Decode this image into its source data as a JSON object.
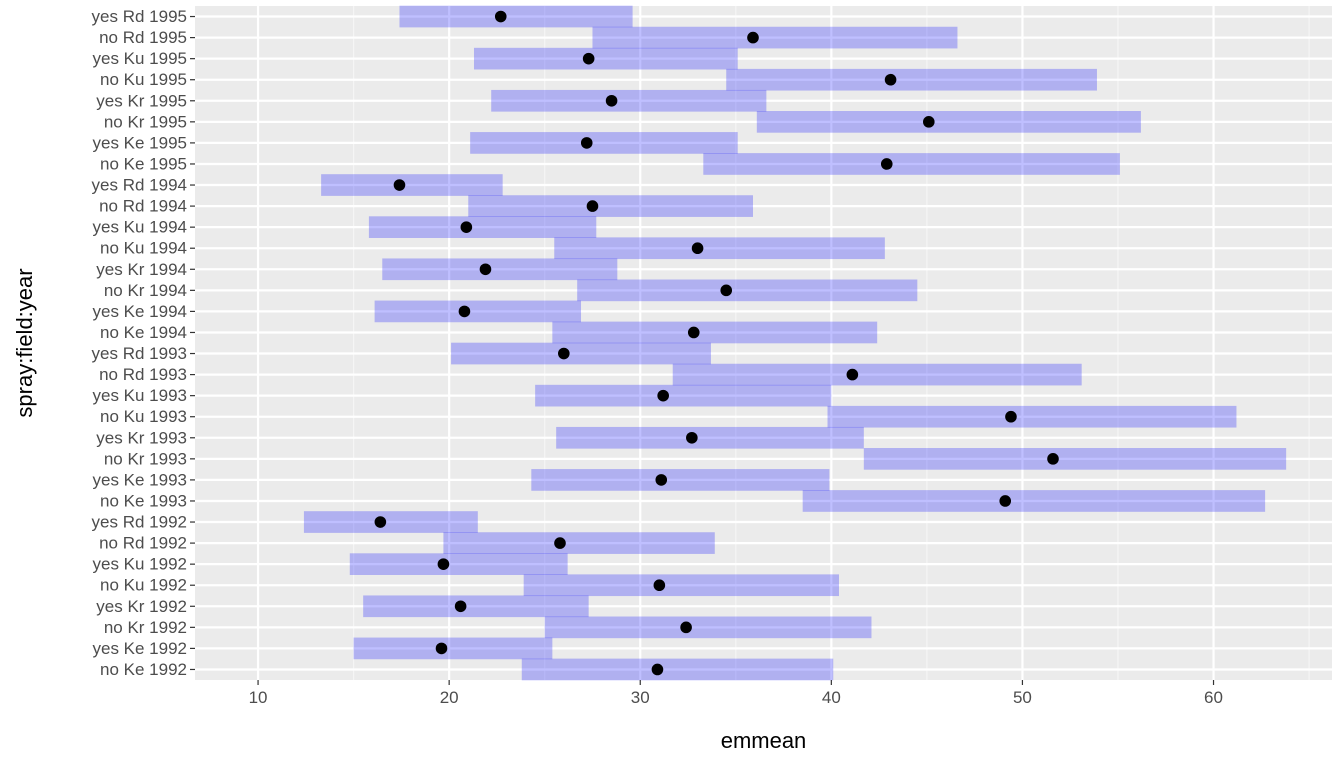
{
  "chart_data": {
    "type": "interval",
    "xlabel": "emmean",
    "ylabel": "spray:field:year",
    "xlim": [
      6.7,
      66.2
    ],
    "x_ticks": [
      10,
      20,
      30,
      40,
      50,
      60
    ],
    "grid": true,
    "legend": "none",
    "colors": {
      "panel_bg": "#ebebeb",
      "grid_major": "#ffffff",
      "grid_minor": "#f5f5f5",
      "interval_fill": "#0000ff",
      "point": "#000000",
      "tick_text": "#4d4d4d"
    },
    "categories": [
      "no Ke 1992",
      "yes Ke 1992",
      "no Kr 1992",
      "yes Kr 1992",
      "no Ku 1992",
      "yes Ku 1992",
      "no Rd 1992",
      "yes Rd 1992",
      "no Ke 1993",
      "yes Ke 1993",
      "no Kr 1993",
      "yes Kr 1993",
      "no Ku 1993",
      "yes Ku 1993",
      "no Rd 1993",
      "yes Rd 1993",
      "no Ke 1994",
      "yes Ke 1994",
      "no Kr 1994",
      "yes Kr 1994",
      "no Ku 1994",
      "yes Ku 1994",
      "no Rd 1994",
      "yes Rd 1994",
      "no Ke 1995",
      "yes Ke 1995",
      "no Kr 1995",
      "yes Kr 1995",
      "no Ku 1995",
      "yes Ku 1995",
      "no Rd 1995",
      "yes Rd 1995"
    ],
    "emmean": [
      30.9,
      19.6,
      32.4,
      20.6,
      31.0,
      19.7,
      25.8,
      16.4,
      49.1,
      31.1,
      51.6,
      32.7,
      49.4,
      31.2,
      41.1,
      26.0,
      32.8,
      20.8,
      34.5,
      21.9,
      33.0,
      20.9,
      27.5,
      17.4,
      42.9,
      27.2,
      45.1,
      28.5,
      43.1,
      27.3,
      35.9,
      22.7
    ],
    "lower": [
      23.8,
      15.0,
      25.0,
      15.5,
      23.9,
      14.8,
      19.7,
      12.4,
      38.5,
      24.3,
      41.7,
      25.6,
      39.8,
      24.5,
      31.7,
      20.1,
      25.4,
      16.1,
      26.7,
      16.5,
      25.5,
      15.8,
      21.0,
      13.3,
      33.3,
      21.1,
      36.1,
      22.2,
      34.5,
      21.3,
      27.5,
      17.4
    ],
    "upper": [
      40.1,
      25.4,
      42.1,
      27.3,
      40.4,
      26.2,
      33.9,
      21.5,
      62.7,
      39.9,
      63.8,
      41.7,
      61.2,
      40.0,
      53.1,
      33.7,
      42.4,
      26.9,
      44.5,
      28.8,
      42.8,
      27.7,
      35.9,
      22.8,
      55.1,
      35.1,
      56.2,
      36.6,
      53.9,
      35.1,
      46.6,
      29.6
    ]
  }
}
